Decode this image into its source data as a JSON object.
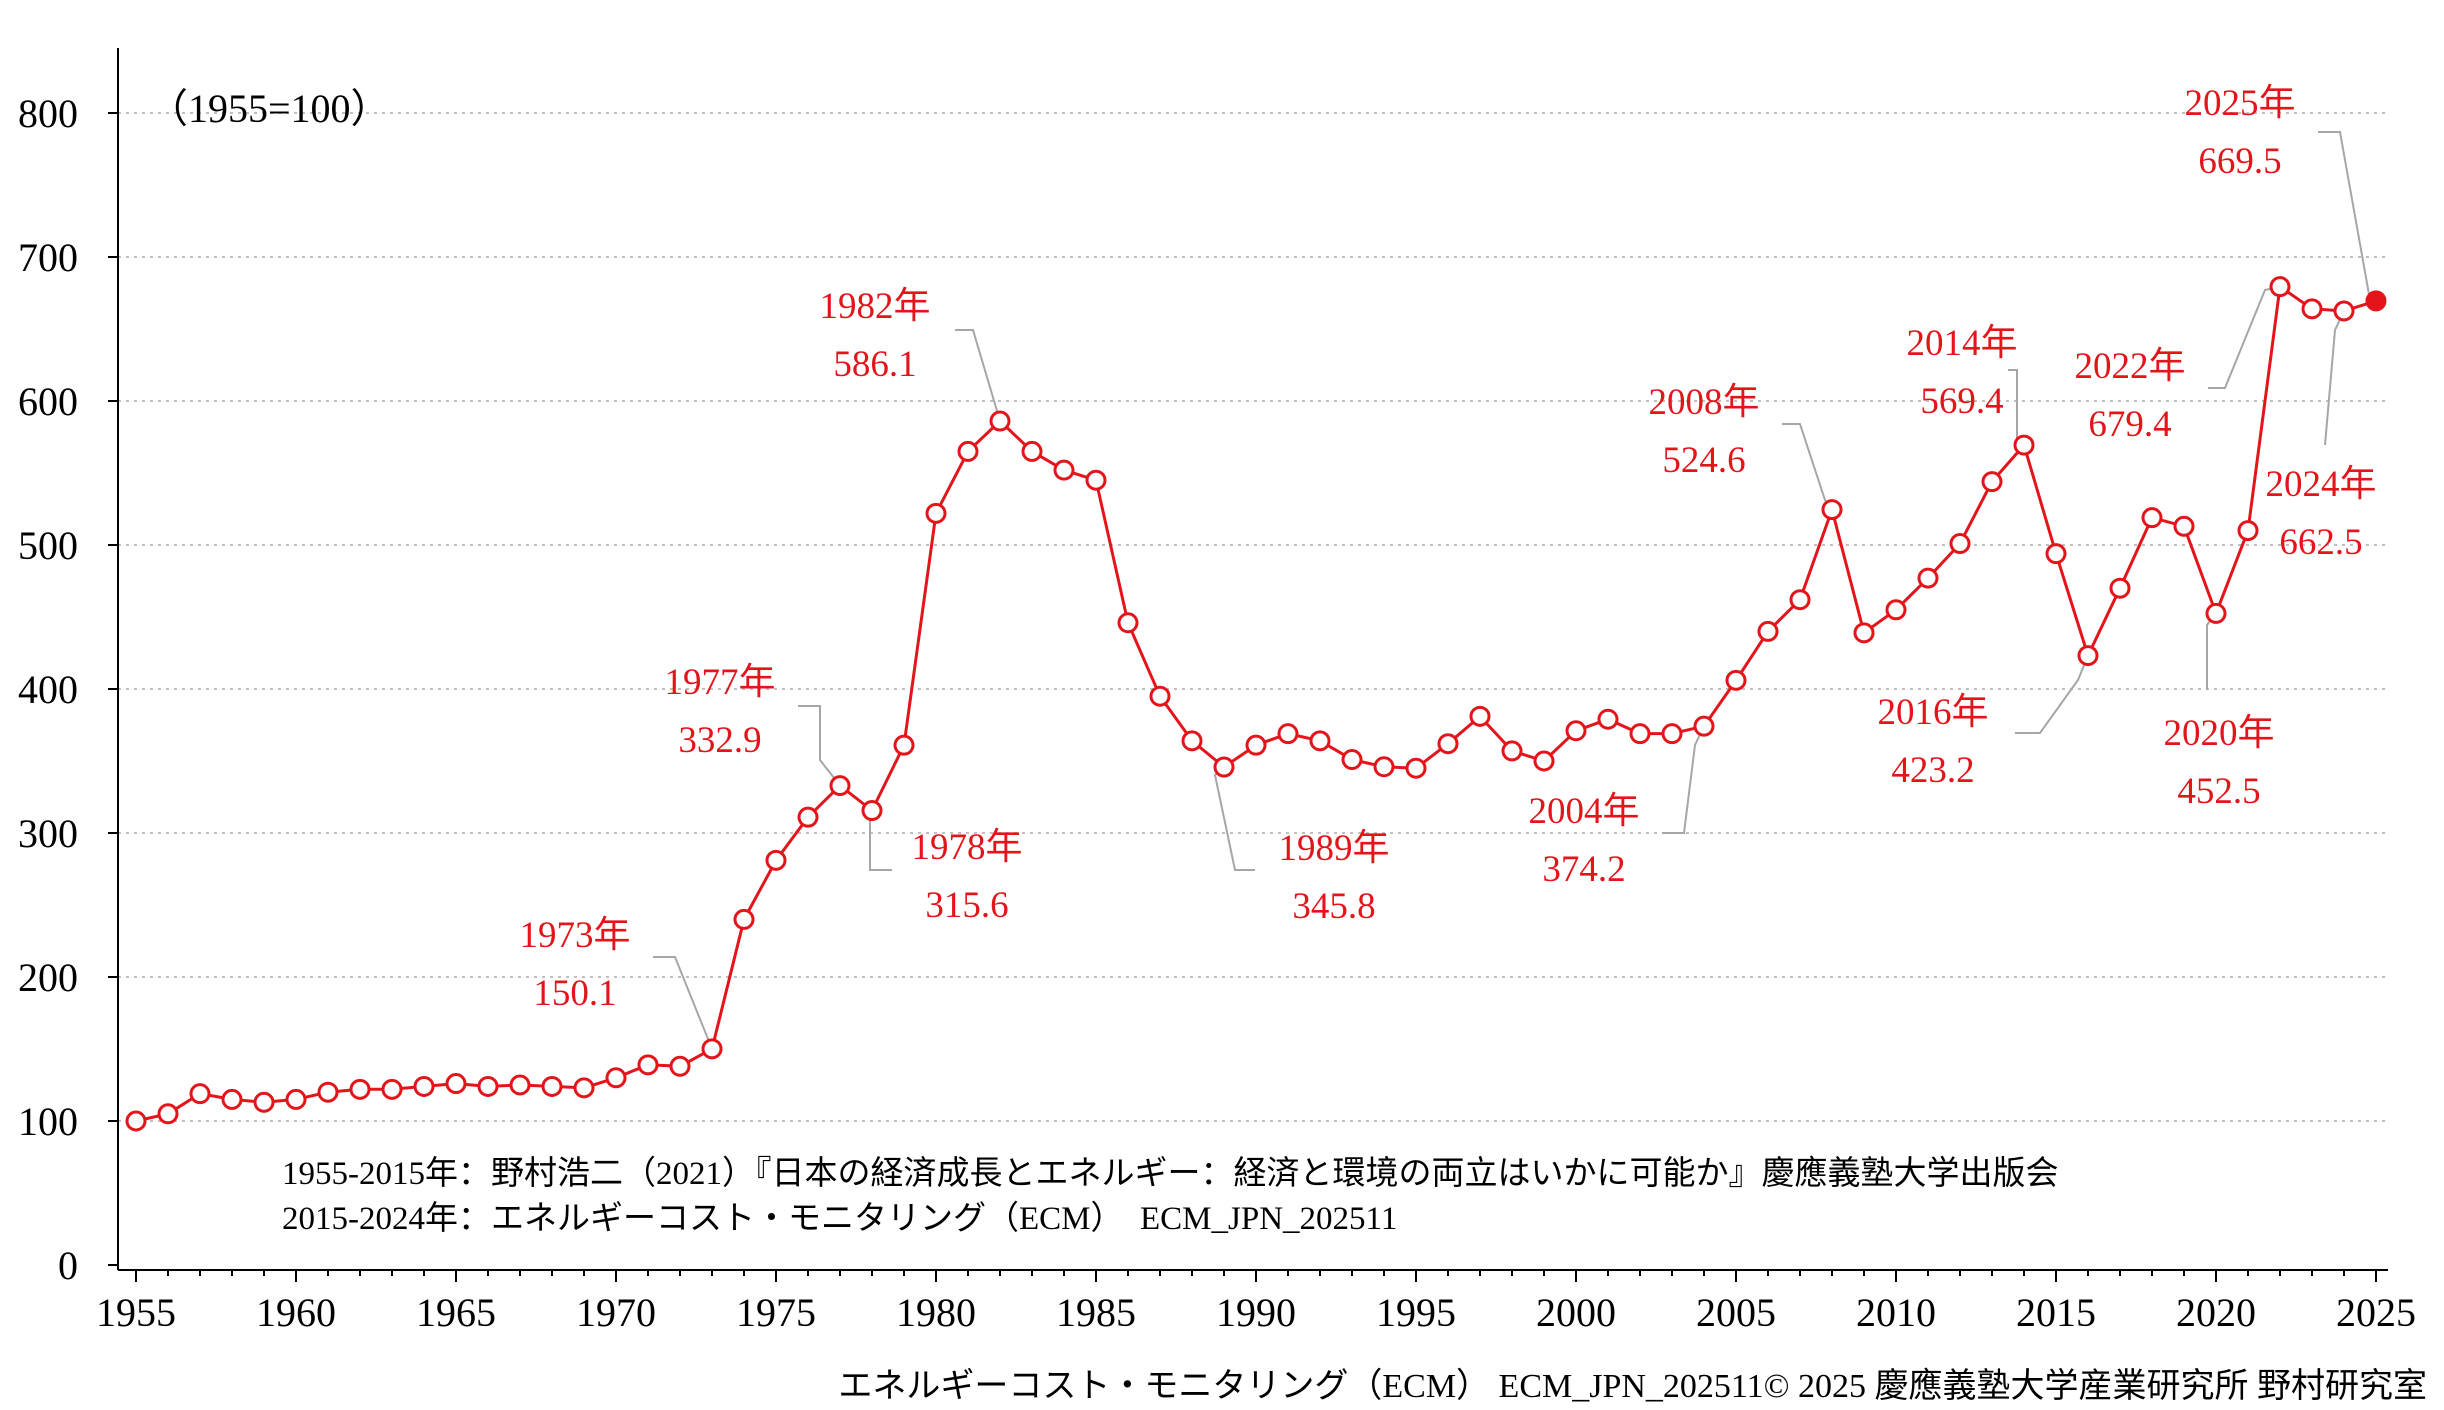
{
  "colors": {
    "series": "#e4141b",
    "leader": "#a6a6a6",
    "grid": "#bfbfbf",
    "axis": "#000000"
  },
  "chart_data": {
    "type": "line",
    "title": "",
    "xlabel": "",
    "ylabel": "",
    "unit_note": "（1955=100）",
    "xlim": [
      1955,
      2025
    ],
    "ylim": [
      0,
      800
    ],
    "x_ticks": [
      "1955",
      "1960",
      "1965",
      "1970",
      "1975",
      "1980",
      "1985",
      "1990",
      "1995",
      "2000",
      "2005",
      "2010",
      "2015",
      "2020",
      "2025"
    ],
    "y_ticks": [
      "0",
      "100",
      "200",
      "300",
      "400",
      "500",
      "600",
      "700",
      "800"
    ],
    "grid": "horizontal dotted",
    "series": [
      {
        "x": [
          1955,
          1956,
          1957,
          1958,
          1959,
          1960,
          1961,
          1962,
          1963,
          1964,
          1965,
          1966,
          1967,
          1968,
          1969,
          1970,
          1971,
          1972,
          1973,
          1974,
          1975,
          1976,
          1977,
          1978,
          1979,
          1980,
          1981,
          1982,
          1983,
          1984,
          1985,
          1986,
          1987,
          1988,
          1989,
          1990,
          1991,
          1992,
          1993,
          1994,
          1995,
          1996,
          1997,
          1998,
          1999,
          2000,
          2001,
          2002,
          2003,
          2004,
          2005,
          2006,
          2007,
          2008,
          2009,
          2010,
          2011,
          2012,
          2013,
          2014,
          2015,
          2016,
          2017,
          2018,
          2019,
          2020,
          2021,
          2022,
          2023,
          2024,
          2025
        ],
        "values": [
          100,
          105,
          119,
          115,
          113,
          115,
          120,
          122,
          122,
          124,
          126,
          124,
          125,
          124,
          123,
          130,
          139,
          138,
          150.1,
          240,
          281,
          311,
          332.9,
          315.6,
          361,
          522,
          565,
          586.1,
          565,
          552,
          545,
          446,
          395,
          364,
          345.8,
          361,
          369,
          364,
          351,
          346,
          345,
          362,
          381,
          357,
          350,
          371,
          379,
          369,
          369,
          374.2,
          406,
          440,
          462,
          524.6,
          439,
          455,
          477,
          501,
          544,
          569.4,
          494,
          423.2,
          470,
          519,
          513,
          452.5,
          510,
          679.4,
          664,
          662.5,
          669.5
        ]
      }
    ],
    "annotations": [
      {
        "year": "1973年",
        "value": "150.1",
        "x": 1973,
        "y": 150.1
      },
      {
        "year": "1977年",
        "value": "332.9",
        "x": 1977,
        "y": 332.9
      },
      {
        "year": "1978年",
        "value": "315.6",
        "x": 1978,
        "y": 315.6
      },
      {
        "year": "1982年",
        "value": "586.1",
        "x": 1982,
        "y": 586.1
      },
      {
        "year": "1989年",
        "value": "345.8",
        "x": 1989,
        "y": 345.8
      },
      {
        "year": "2004年",
        "value": "374.2",
        "x": 2004,
        "y": 374.2
      },
      {
        "year": "2008年",
        "value": "524.6",
        "x": 2008,
        "y": 524.6
      },
      {
        "year": "2014年",
        "value": "569.4",
        "x": 2014,
        "y": 569.4
      },
      {
        "year": "2016年",
        "value": "423.2",
        "x": 2016,
        "y": 423.2
      },
      {
        "year": "2020年",
        "value": "452.5",
        "x": 2020,
        "y": 452.5
      },
      {
        "year": "2022年",
        "value": "679.4",
        "x": 2022,
        "y": 679.4
      },
      {
        "year": "2024年",
        "value": "662.5",
        "x": 2024,
        "y": 662.5
      },
      {
        "year": "2025年",
        "value": "669.5",
        "x": 2025,
        "y": 669.5
      }
    ]
  },
  "notes": {
    "source_1": "1955-2015年：野村浩二（2021）『日本の経済成長とエネルギー：経済と環境の両立はいかに可能か』慶應義塾大学出版会",
    "source_2": "2015-2024年：エネルギーコスト・モニタリング（ECM）　ECM_JPN_202511"
  },
  "footer": "エネルギーコスト・モニタリング（ECM）  ECM_JPN_202511© 2025 慶應義塾大学産業研究所 野村研究室"
}
